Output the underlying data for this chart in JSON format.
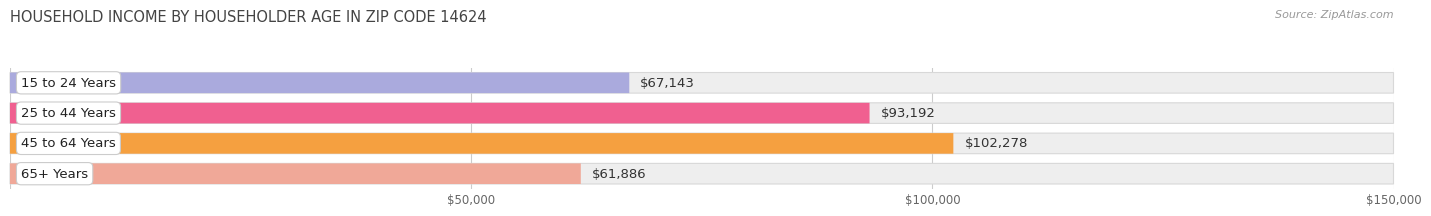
{
  "title": "HOUSEHOLD INCOME BY HOUSEHOLDER AGE IN ZIP CODE 14624",
  "source": "Source: ZipAtlas.com",
  "categories": [
    "15 to 24 Years",
    "25 to 44 Years",
    "45 to 64 Years",
    "65+ Years"
  ],
  "values": [
    67143,
    93192,
    102278,
    61886
  ],
  "bar_colors": [
    "#aaaadd",
    "#f06090",
    "#f5a040",
    "#f0a898"
  ],
  "bar_bg_color": "#eeeeee",
  "bar_border_color": "#d8d8d8",
  "value_labels": [
    "$67,143",
    "$93,192",
    "$102,278",
    "$61,886"
  ],
  "xlim": [
    0,
    150000
  ],
  "xticks": [
    50000,
    100000,
    150000
  ],
  "xticklabels": [
    "$50,000",
    "$100,000",
    "$150,000"
  ],
  "background_color": "#ffffff",
  "title_fontsize": 10.5,
  "label_fontsize": 9.5,
  "tick_fontsize": 8.5,
  "source_fontsize": 8,
  "bar_height": 0.68,
  "rounding_size": 0.3
}
